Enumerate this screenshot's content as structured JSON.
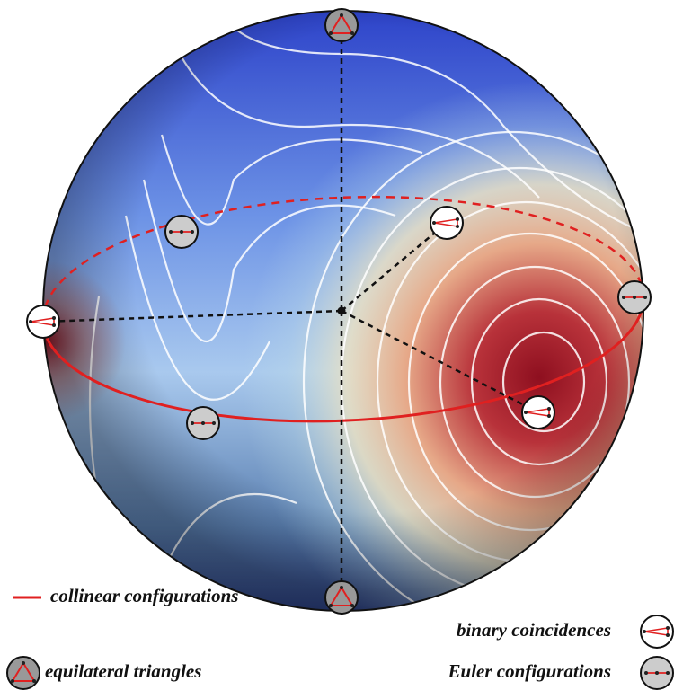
{
  "legend": {
    "collinear": "collinear configurations",
    "binary": "binary coincidences",
    "equilateral": "equilateral triangles",
    "euler": "Euler configurations"
  }
}
